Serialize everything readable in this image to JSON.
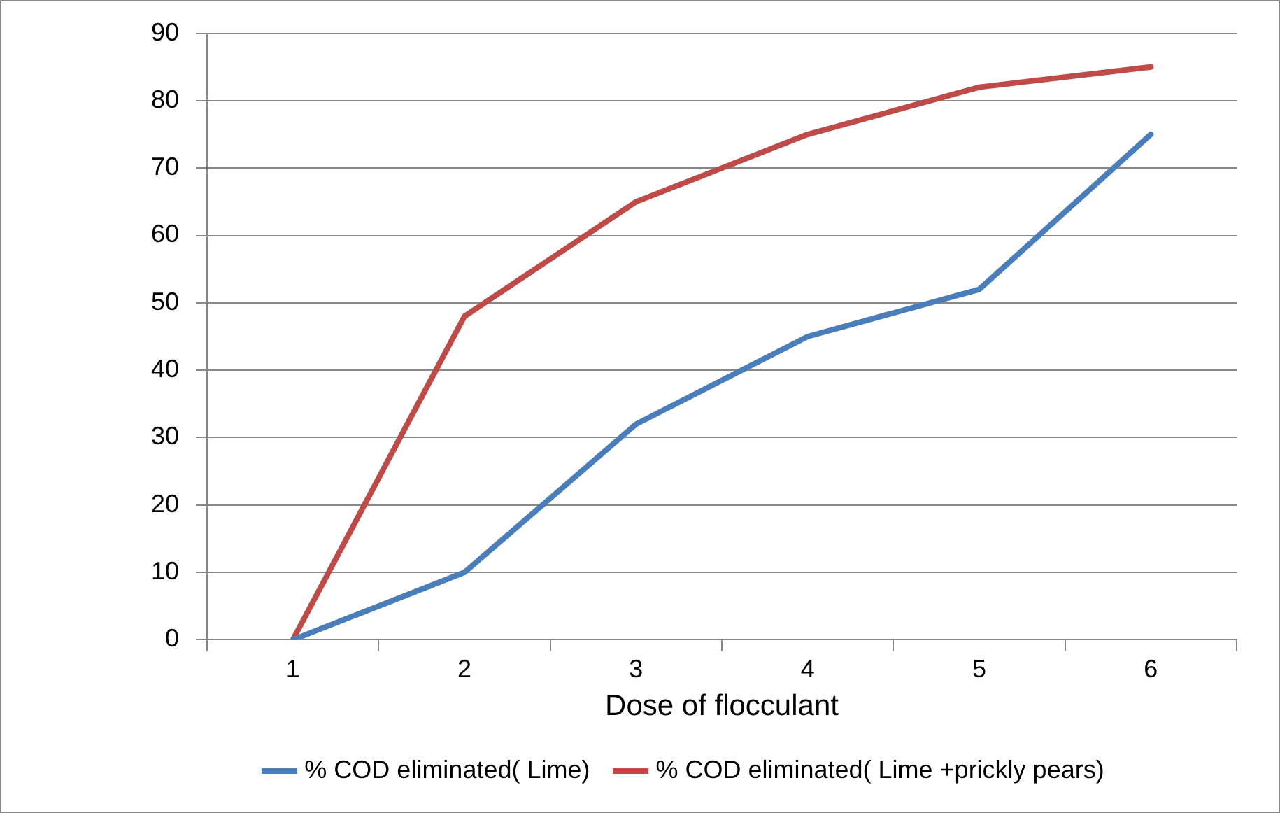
{
  "chart_data": {
    "type": "line",
    "xlabel": "Dose of flocculant",
    "categories": [
      "1",
      "2",
      "3",
      "4",
      "5",
      "6"
    ],
    "series": [
      {
        "name": "% COD eliminated( Lime)",
        "color": "#4a7ebb",
        "values": [
          0,
          10,
          32,
          45,
          52,
          75
        ]
      },
      {
        "name": "% COD eliminated( Lime +prickly pears)",
        "color": "#be4b48",
        "values": [
          0,
          48,
          65,
          75,
          82,
          85
        ]
      }
    ],
    "ylim": [
      0,
      90
    ],
    "yticks": [
      0,
      10,
      20,
      30,
      40,
      50,
      60,
      70,
      80,
      90
    ],
    "grid": "y",
    "legend": "bottom",
    "marker": "none"
  }
}
